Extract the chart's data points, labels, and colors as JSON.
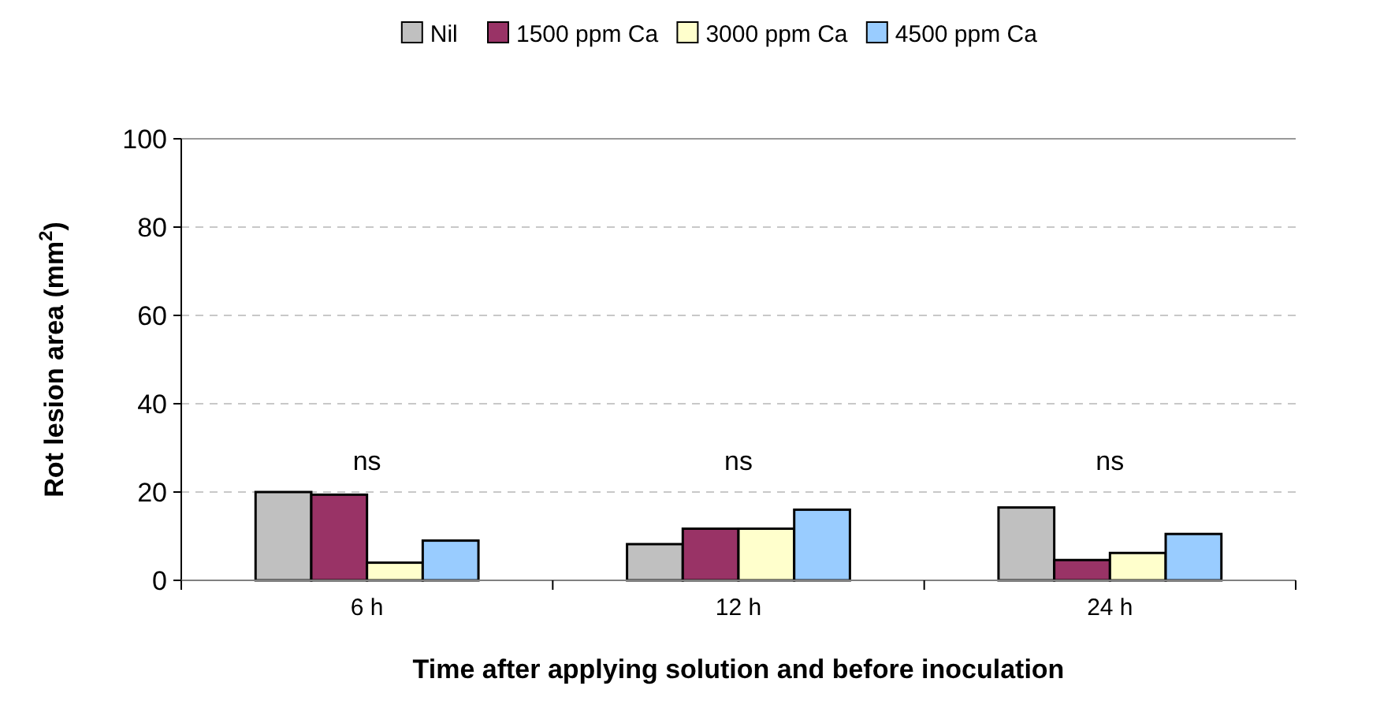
{
  "chart_data": {
    "type": "bar",
    "xlabel": "Time after applying solution and before inoculation",
    "ylabel": "Rot lesion area (mm$^{2}$)",
    "categories": [
      "6 h",
      "12 h",
      "24 h"
    ],
    "series": [
      {
        "name": "Nil",
        "color": "#c0c0c0",
        "values": [
          20,
          8.2,
          16.5
        ]
      },
      {
        "name": "1500 ppm Ca",
        "color": "#993366",
        "values": [
          19.4,
          11.7,
          4.6
        ]
      },
      {
        "name": "3000 ppm Ca",
        "color": "#ffffcc",
        "values": [
          4,
          11.7,
          6.2
        ]
      },
      {
        "name": "4500 ppm Ca",
        "color": "#99ccff",
        "values": [
          9,
          16,
          10.5
        ]
      }
    ],
    "ylim": [
      0,
      100
    ],
    "yticks": [
      0,
      20,
      40,
      60,
      80,
      100
    ],
    "grid": "y",
    "legend": "top",
    "annotations": [
      "ns",
      "ns",
      "ns"
    ]
  }
}
